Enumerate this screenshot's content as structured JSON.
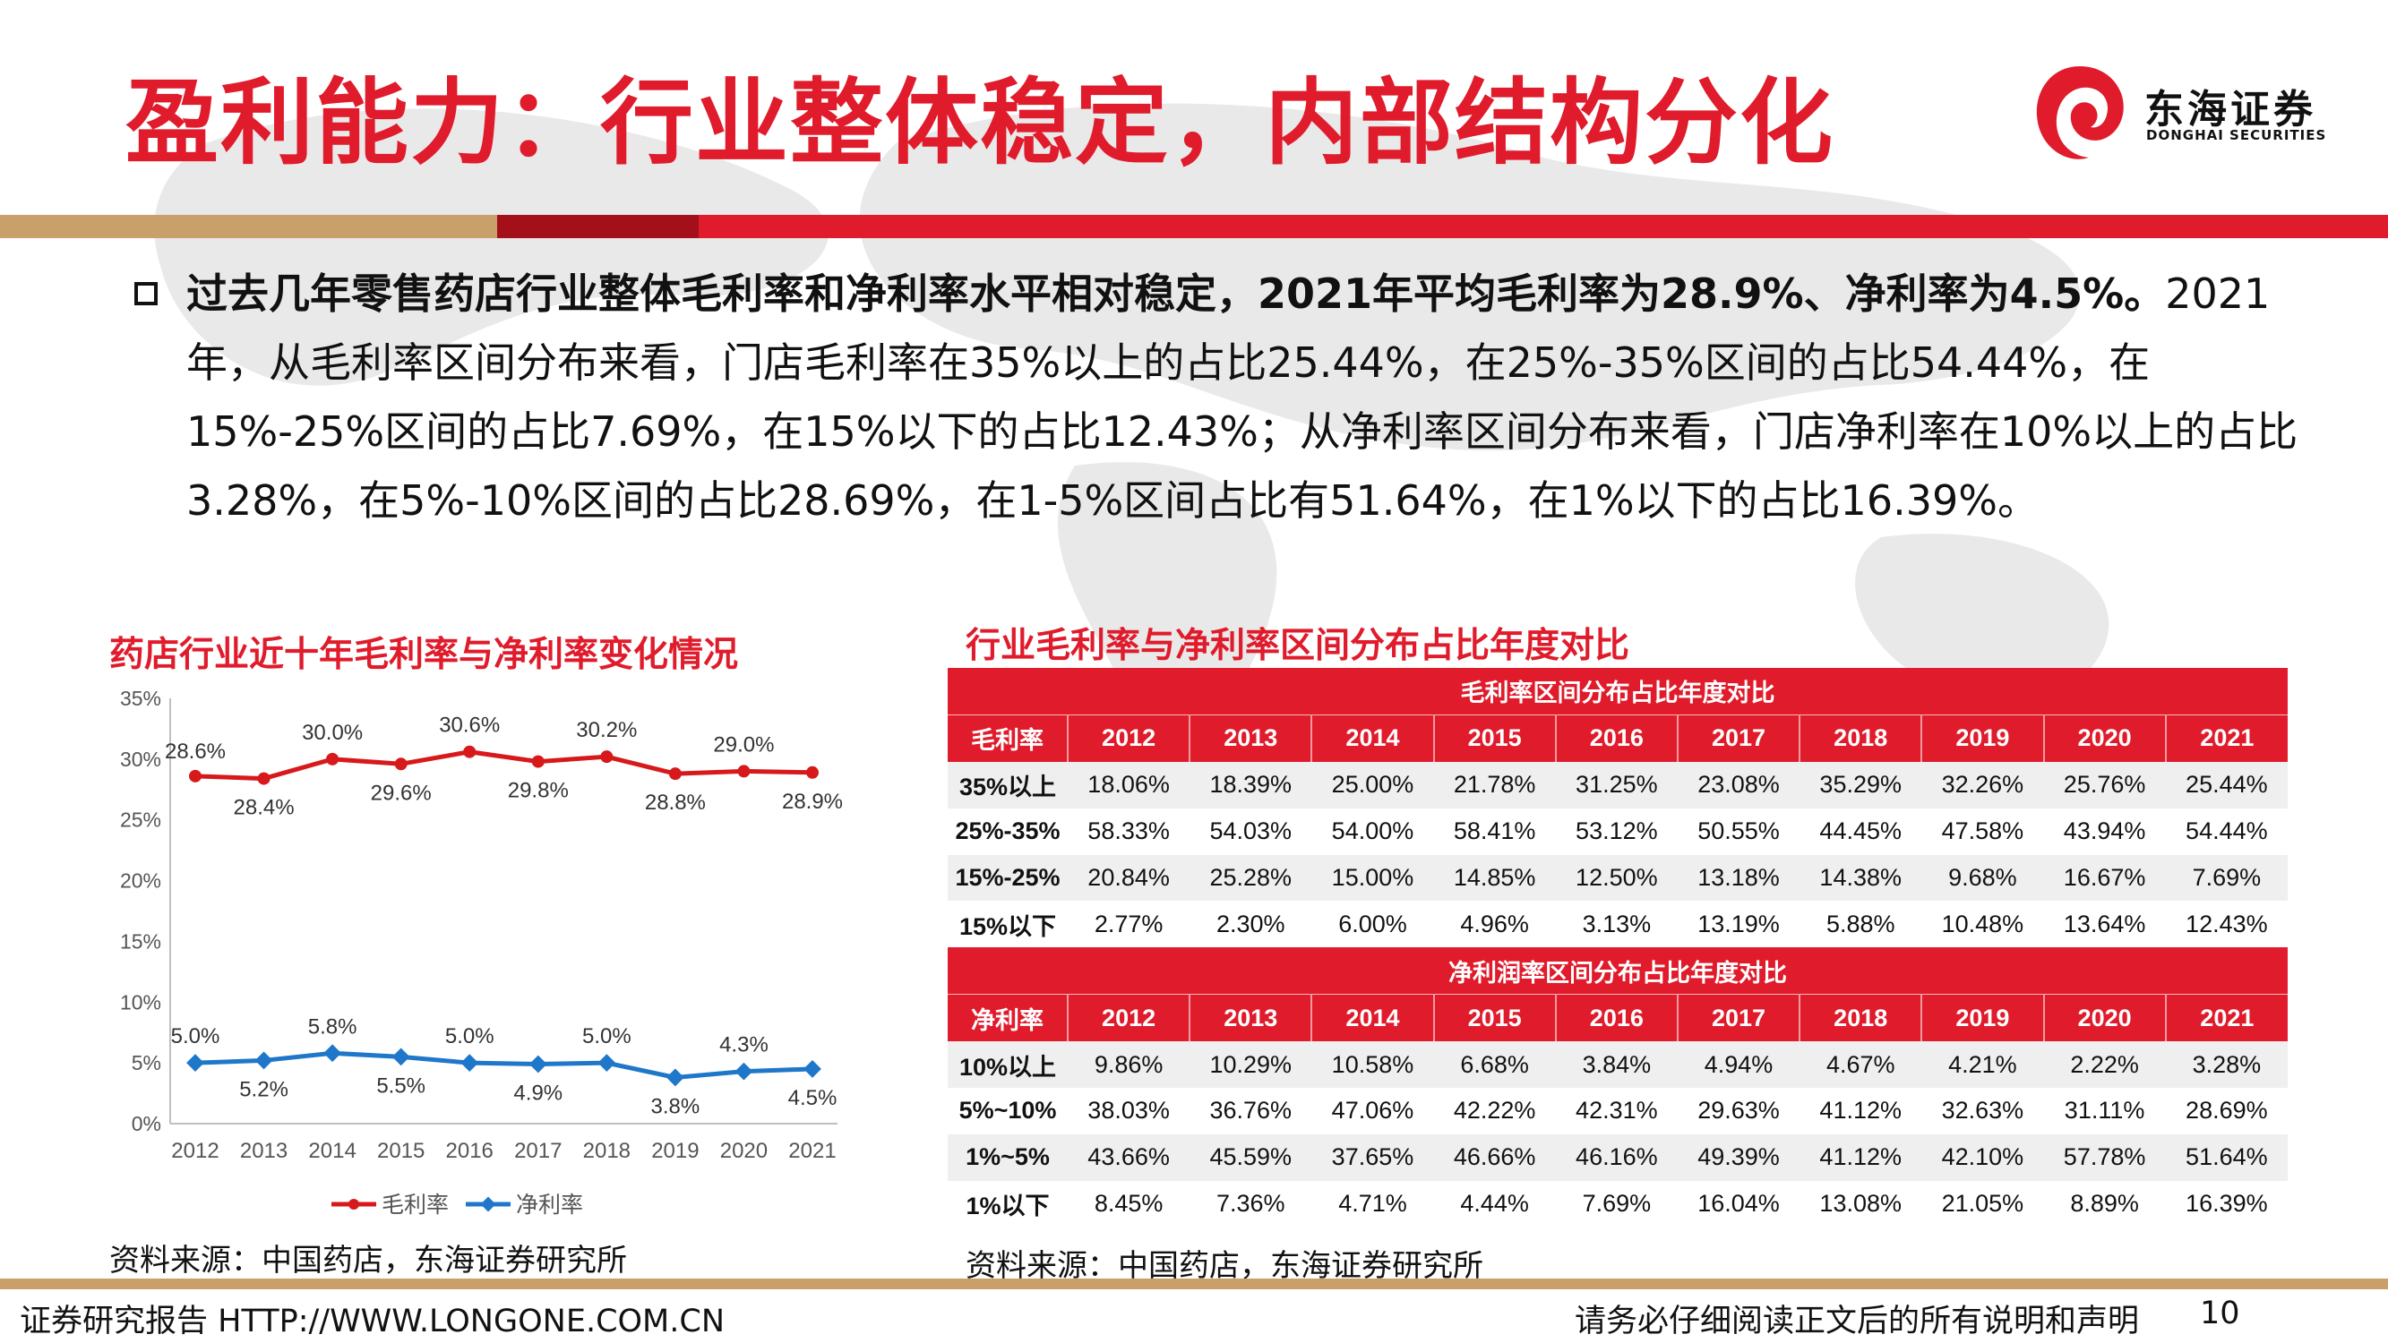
{
  "slide": {
    "title": "盈利能力：行业整体稳定，内部结构分化",
    "logo_cn": "东海证券",
    "logo_en": "DONGHAI SECURITIES",
    "paragraph_bold": "过去几年零售药店行业整体毛利率和净利率水平相对稳定，2021年平均毛利率为28.9%、净利率为4.5%。",
    "paragraph_rest": "2021年，从毛利率区间分布来看，门店毛利率在35%以上的占比25.44%，在25%-35%区间的占比54.44%，在15%-25%区间的占比7.69%，在15%以下的占比12.43%；从净利率区间分布来看，门店净利率在10%以上的占比3.28%，在5%-10%区间的占比28.69%，在1-5%区间占比有51.64%，在1%以下的占比16.39%。",
    "left_title": "药店行业近十年毛利率与净利率变化情况",
    "right_title": "行业毛利率与净利率区间分布占比年度对比",
    "left_source": "资料来源：中国药店，东海证券研究所",
    "right_source": "资料来源：中国药店，东海证券研究所",
    "footer_left": "证券研究报告 HTTP://WWW.LONGONE.COM.CN",
    "footer_right": "请务必仔细阅读正文后的所有说明和声明",
    "page_number": "10"
  },
  "colors": {
    "brand_red": "#e01b2b",
    "dark_red": "#a3101a",
    "gold": "#c9a06a",
    "line_blue": "#1f77c9"
  },
  "chart_data": [
    {
      "type": "line",
      "title": "药店行业近十年毛利率与净利率变化情况",
      "x": [
        "2012",
        "2013",
        "2014",
        "2015",
        "2016",
        "2017",
        "2018",
        "2019",
        "2020",
        "2021"
      ],
      "series": [
        {
          "name": "毛利率",
          "color": "#d7191c",
          "values": [
            28.6,
            28.4,
            30.0,
            29.6,
            30.6,
            29.8,
            30.2,
            28.8,
            29.0,
            28.9
          ],
          "labels": [
            "28.6%",
            "28.4%",
            "30.0%",
            "29.6%",
            "30.6%",
            "29.8%",
            "30.2%",
            "28.8%",
            "29.0%",
            "28.9%"
          ]
        },
        {
          "name": "净利率",
          "color": "#1f77c9",
          "values": [
            5.0,
            5.2,
            5.8,
            5.5,
            5.0,
            4.9,
            5.0,
            3.8,
            4.3,
            4.5
          ],
          "labels": [
            "5.0%",
            "5.2%",
            "5.8%",
            "5.5%",
            "5.0%",
            "4.9%",
            "5.0%",
            "3.8%",
            "4.3%",
            "4.5%"
          ]
        }
      ],
      "ylim": [
        0,
        35
      ],
      "yticks": [
        "0%",
        "5%",
        "10%",
        "15%",
        "20%",
        "25%",
        "30%",
        "35%"
      ],
      "legend": "bottom",
      "grid": false
    },
    {
      "type": "table",
      "title": "行业毛利率与净利率区间分布占比年度对比",
      "years": [
        "2012",
        "2013",
        "2014",
        "2015",
        "2016",
        "2017",
        "2018",
        "2019",
        "2020",
        "2021"
      ],
      "sections": [
        {
          "caption": "毛利率区间分布占比年度对比",
          "header": "毛利率",
          "rows": [
            {
              "label": "35%以上",
              "values": [
                "18.06%",
                "18.39%",
                "25.00%",
                "21.78%",
                "31.25%",
                "23.08%",
                "35.29%",
                "32.26%",
                "25.76%",
                "25.44%"
              ]
            },
            {
              "label": "25%-35%",
              "values": [
                "58.33%",
                "54.03%",
                "54.00%",
                "58.41%",
                "53.12%",
                "50.55%",
                "44.45%",
                "47.58%",
                "43.94%",
                "54.44%"
              ]
            },
            {
              "label": "15%-25%",
              "values": [
                "20.84%",
                "25.28%",
                "15.00%",
                "14.85%",
                "12.50%",
                "13.18%",
                "14.38%",
                "9.68%",
                "16.67%",
                "7.69%"
              ]
            },
            {
              "label": "15%以下",
              "values": [
                "2.77%",
                "2.30%",
                "6.00%",
                "4.96%",
                "3.13%",
                "13.19%",
                "5.88%",
                "10.48%",
                "13.64%",
                "12.43%"
              ]
            }
          ]
        },
        {
          "caption": "净利润率区间分布占比年度对比",
          "header": "净利率",
          "rows": [
            {
              "label": "10%以上",
              "values": [
                "9.86%",
                "10.29%",
                "10.58%",
                "6.68%",
                "3.84%",
                "4.94%",
                "4.67%",
                "4.21%",
                "2.22%",
                "3.28%"
              ]
            },
            {
              "label": "5%~10%",
              "values": [
                "38.03%",
                "36.76%",
                "47.06%",
                "42.22%",
                "42.31%",
                "29.63%",
                "41.12%",
                "32.63%",
                "31.11%",
                "28.69%"
              ]
            },
            {
              "label": "1%~5%",
              "values": [
                "43.66%",
                "45.59%",
                "37.65%",
                "46.66%",
                "46.16%",
                "49.39%",
                "41.12%",
                "42.10%",
                "57.78%",
                "51.64%"
              ]
            },
            {
              "label": "1%以下",
              "values": [
                "8.45%",
                "7.36%",
                "4.71%",
                "4.44%",
                "7.69%",
                "16.04%",
                "13.08%",
                "21.05%",
                "8.89%",
                "16.39%"
              ]
            }
          ]
        }
      ]
    }
  ]
}
